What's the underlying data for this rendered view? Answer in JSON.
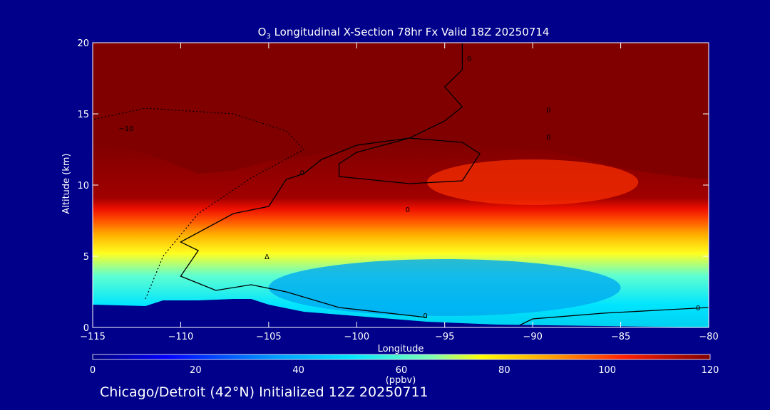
{
  "chart_data": {
    "type": "heatmap",
    "title": "O3 Longitudinal X-Section 78hr  Fx Valid 18Z 20250714",
    "title_parts": {
      "pre": "O",
      "sub": "3",
      "post": " Longitudinal X-Section 78hr  Fx Valid 18Z 20250714"
    },
    "xlabel": "Longitude",
    "ylabel": "Altitude (km)",
    "xlim": [
      -115,
      -80
    ],
    "ylim": [
      0,
      20
    ],
    "xticks": [
      -115,
      -110,
      -105,
      -100,
      -95,
      -90,
      -85,
      -80
    ],
    "xtick_labels": [
      "−115",
      "−110",
      "−105",
      "−100",
      "−95",
      "−90",
      "−85",
      "−80"
    ],
    "yticks": [
      0,
      5,
      10,
      15,
      20
    ],
    "ytick_labels": [
      "0",
      "5",
      "10",
      "15",
      "20"
    ],
    "colorbar": {
      "label": "(ppbv)",
      "range": [
        0,
        120
      ],
      "ticks": [
        0,
        20,
        40,
        60,
        80,
        100,
        120
      ],
      "tick_labels": [
        "0",
        "20",
        "40",
        "60",
        "80",
        "100",
        "120"
      ]
    },
    "tropopause_km": [
      [
        -115,
        13.0
      ],
      [
        -113,
        12.6
      ],
      [
        -111,
        11.8
      ],
      [
        -109,
        10.8
      ],
      [
        -107,
        11.0
      ],
      [
        -105,
        11.7
      ],
      [
        -103,
        12.0
      ],
      [
        -101,
        12.5
      ],
      [
        -99,
        12.8
      ],
      [
        -97,
        12.9
      ],
      [
        -95,
        12.8
      ],
      [
        -93,
        12.7
      ],
      [
        -91,
        12.6
      ],
      [
        -89,
        12.4
      ],
      [
        -87,
        11.8
      ],
      [
        -85,
        11.2
      ],
      [
        -83,
        10.8
      ],
      [
        -81,
        10.5
      ],
      [
        -80,
        10.4
      ]
    ],
    "terrain_km": [
      [
        -115,
        1.6
      ],
      [
        -112,
        1.5
      ],
      [
        -111,
        1.9
      ],
      [
        -109,
        1.9
      ],
      [
        -107,
        2.0
      ],
      [
        -106,
        2.0
      ],
      [
        -105,
        1.6
      ],
      [
        -103,
        1.1
      ],
      [
        -100,
        0.8
      ],
      [
        -96,
        0.4
      ],
      [
        -92,
        0.2
      ],
      [
        -80,
        0.0
      ]
    ],
    "contour_labels": [
      {
        "text": "0",
        "x": -93.6,
        "y": 18.9
      },
      {
        "text": "0",
        "x": -89.1,
        "y": 15.3
      },
      {
        "text": "0",
        "x": -89.1,
        "y": 13.4
      },
      {
        "text": "−10",
        "x": -113.1,
        "y": 14.0
      },
      {
        "text": "0",
        "x": -103.1,
        "y": 10.9
      },
      {
        "text": "0",
        "x": -97.1,
        "y": 8.3
      },
      {
        "text": "0",
        "x": -96.1,
        "y": 0.85
      },
      {
        "text": "0",
        "x": -80.6,
        "y": 1.4
      },
      {
        "text": "Δ",
        "x": -105.1,
        "y": 5.0
      }
    ],
    "footer": "Chicago/Detroit (42°N) Initialized 12Z 20250711"
  }
}
